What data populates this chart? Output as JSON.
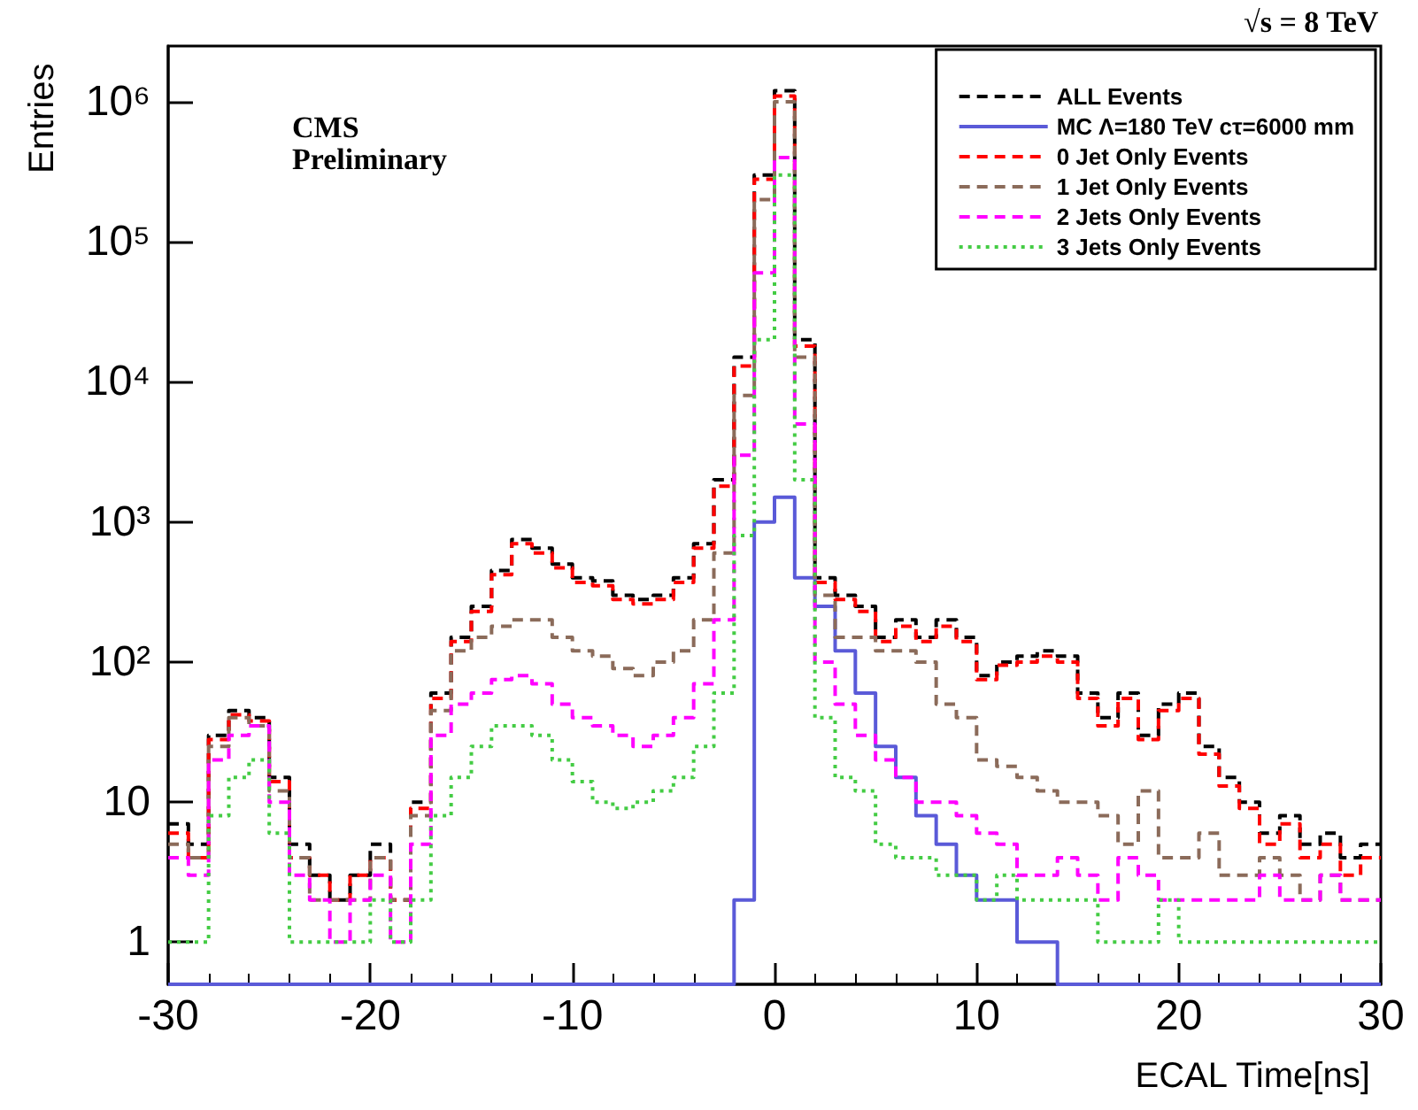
{
  "chart_data": {
    "type": "histogram",
    "xlabel": "ECAL Time[ns]",
    "ylabel": "Entries",
    "annotations": [
      "√s = 8 TeV",
      "CMS Preliminary"
    ],
    "bins": [
      -30,
      -29,
      -28,
      -27,
      -26,
      -25,
      -24,
      -23,
      -22,
      -21,
      -20,
      -19,
      -18,
      -17,
      -16,
      -15,
      -14,
      -13,
      -12,
      -11,
      -10,
      -9,
      -8,
      -7,
      -6,
      -5,
      -4,
      -3,
      -2,
      -1,
      0,
      1,
      2,
      3,
      4,
      5,
      6,
      7,
      8,
      9,
      10,
      11,
      12,
      13,
      14,
      15,
      16,
      17,
      18,
      19,
      20,
      21,
      22,
      23,
      24,
      25,
      26,
      27,
      28,
      29,
      30
    ],
    "series": [
      {
        "name": "ALL Events",
        "color": "#000000",
        "line_style": "dashed",
        "values": [
          7,
          5,
          30,
          45,
          40,
          15,
          5,
          3,
          2,
          3,
          5,
          2,
          10,
          60,
          150,
          250,
          450,
          750,
          650,
          500,
          400,
          380,
          300,
          280,
          300,
          400,
          700,
          2000,
          15000,
          300000,
          1200000,
          20000,
          400,
          300,
          250,
          150,
          200,
          150,
          200,
          150,
          80,
          100,
          110,
          120,
          110,
          60,
          40,
          60,
          30,
          50,
          60,
          25,
          15,
          10,
          6,
          8,
          5,
          6,
          4,
          5
        ]
      },
      {
        "name": "MC Λ=180 TeV cτ=6000 mm",
        "color": "#5a5ad8",
        "line_style": "solid",
        "values": [
          null,
          null,
          null,
          null,
          null,
          null,
          null,
          null,
          null,
          null,
          null,
          null,
          null,
          null,
          null,
          null,
          null,
          null,
          null,
          null,
          null,
          null,
          null,
          null,
          null,
          null,
          null,
          null,
          2,
          1000,
          1500,
          400,
          250,
          120,
          60,
          25,
          15,
          8,
          5,
          3,
          2,
          2,
          1,
          1,
          null,
          null,
          null,
          null,
          null,
          null,
          null,
          null,
          null,
          null,
          null,
          null,
          null,
          null,
          null,
          null
        ]
      },
      {
        "name": "0 Jet Only Events",
        "color": "#ff0000",
        "line_style": "dashed",
        "values": [
          6,
          4,
          28,
          42,
          38,
          14,
          4,
          3,
          2,
          3,
          4,
          2,
          9,
          55,
          140,
          230,
          420,
          700,
          600,
          470,
          370,
          350,
          280,
          260,
          280,
          370,
          650,
          1800,
          13000,
          280000,
          1100000,
          18000,
          370,
          280,
          230,
          140,
          180,
          140,
          180,
          140,
          75,
          95,
          100,
          110,
          100,
          55,
          35,
          55,
          28,
          45,
          55,
          22,
          13,
          9,
          5,
          7,
          4,
          5,
          3,
          4
        ]
      },
      {
        "name": "1 Jet Only Events",
        "color": "#8b6b5a",
        "line_style": "dashed",
        "values": [
          5,
          4,
          25,
          40,
          35,
          12,
          4,
          2,
          2,
          2,
          4,
          2,
          8,
          45,
          120,
          150,
          180,
          200,
          200,
          150,
          120,
          110,
          90,
          80,
          100,
          120,
          200,
          600,
          8000,
          200000,
          1000000,
          15000,
          300,
          150,
          150,
          120,
          120,
          100,
          50,
          40,
          20,
          18,
          15,
          12,
          10,
          10,
          8,
          5,
          12,
          4,
          4,
          6,
          3,
          3,
          4,
          3,
          2,
          3,
          2,
          2
        ]
      },
      {
        "name": "2 Jets Only Events",
        "color": "#ff00ff",
        "line_style": "dashed",
        "values": [
          4,
          3,
          20,
          30,
          35,
          10,
          3,
          2,
          1,
          2,
          3,
          1,
          5,
          30,
          50,
          60,
          75,
          80,
          70,
          50,
          40,
          35,
          30,
          25,
          30,
          40,
          70,
          200,
          3000,
          60000,
          400000,
          5000,
          100,
          50,
          30,
          20,
          15,
          10,
          10,
          8,
          6,
          5,
          3,
          3,
          4,
          3,
          2,
          4,
          3,
          2,
          2,
          2,
          2,
          2,
          3,
          2,
          2,
          3,
          2,
          2
        ]
      },
      {
        "name": "3 Jets Only Events",
        "color": "#44cc44",
        "line_style": "dotted",
        "values": [
          1,
          1,
          8,
          15,
          20,
          6,
          1,
          1,
          1,
          1,
          2,
          1,
          2,
          8,
          15,
          25,
          35,
          35,
          30,
          20,
          14,
          10,
          9,
          10,
          12,
          15,
          25,
          60,
          800,
          20000,
          300000,
          2000,
          40,
          15,
          12,
          5,
          4,
          4,
          3,
          3,
          2,
          3,
          2,
          2,
          2,
          2,
          1,
          1,
          1,
          2,
          1,
          1,
          1,
          1,
          1,
          1,
          1,
          1,
          1,
          1
        ]
      }
    ],
    "xlim": [
      -30,
      30
    ],
    "xticks": [
      -30,
      -20,
      -10,
      0,
      10,
      20,
      30
    ],
    "ylim": [
      0.5,
      2500000
    ],
    "yticks": [
      1,
      10,
      {
        "value": 100,
        "label": "10²"
      },
      {
        "value": 1000,
        "label": "10³"
      },
      {
        "value": 10000,
        "label": "10⁴"
      },
      {
        "value": 100000,
        "label": "10⁵"
      },
      {
        "value": 1000000,
        "label": "10⁶"
      }
    ],
    "log": "y",
    "grid": false,
    "legend": "top right",
    "marker": "none"
  }
}
